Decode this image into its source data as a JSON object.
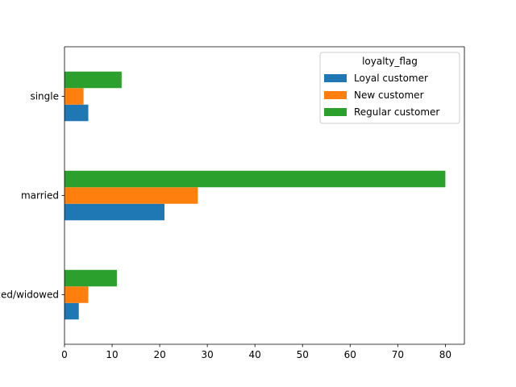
{
  "chart_data": {
    "type": "bar",
    "orientation": "horizontal",
    "categories": [
      "divorced/widowed",
      "married",
      "single"
    ],
    "series": [
      {
        "name": "Loyal customer",
        "color": "#1f77b4",
        "values": [
          3,
          21,
          5
        ]
      },
      {
        "name": "New customer",
        "color": "#ff7f0e",
        "values": [
          5,
          28,
          4
        ]
      },
      {
        "name": "Regular customer",
        "color": "#2ca02c",
        "values": [
          11,
          80,
          12
        ]
      }
    ],
    "title": "",
    "xlabel": "",
    "ylabel": "",
    "xlim": [
      0,
      84
    ],
    "xticks": [
      0,
      10,
      20,
      30,
      40,
      50,
      60,
      70,
      80
    ],
    "grid": false,
    "legend": {
      "title": "loyalty_flag",
      "placement": "top-right"
    }
  }
}
